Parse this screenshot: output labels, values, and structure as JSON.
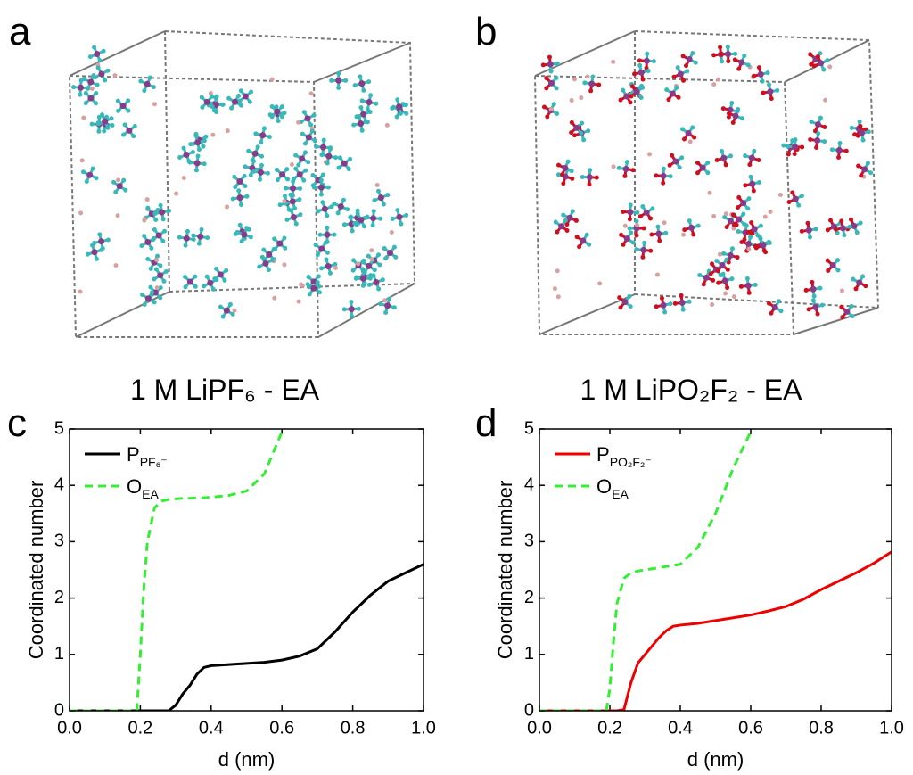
{
  "panels": [
    {
      "label": "a",
      "caption": "1 M LiPF₆ - EA"
    },
    {
      "label": "b",
      "caption": "1 M LiPO₂F₂ - EA"
    }
  ],
  "chart_data": [
    {
      "type": "line",
      "label": "c",
      "xlabel": "d (nm)",
      "ylabel": "Coordinated number",
      "x": [
        0,
        0.05,
        0.1,
        0.15,
        0.19,
        0.2,
        0.21,
        0.22,
        0.24,
        0.26,
        0.28,
        0.3,
        0.32,
        0.34,
        0.36,
        0.38,
        0.4,
        0.45,
        0.5,
        0.55,
        0.6,
        0.65,
        0.7,
        0.75,
        0.8,
        0.85,
        0.9,
        0.95,
        1.0
      ],
      "xlim": [
        0,
        1
      ],
      "ylim": [
        0,
        5
      ],
      "xticks": [
        {
          "value": 0,
          "label": "0.0"
        },
        {
          "value": 0.2,
          "label": "0.2"
        },
        {
          "value": 0.4,
          "label": "0.4"
        },
        {
          "value": 0.6,
          "label": "0.6"
        },
        {
          "value": 0.8,
          "label": "0.8"
        },
        {
          "value": 1,
          "label": "1.0"
        }
      ],
      "yticks": [
        0,
        1,
        2,
        3,
        4,
        5
      ],
      "series": [
        {
          "name": "P",
          "subscript": "PF₆⁻",
          "color": "#000000",
          "dash": false,
          "values": [
            0,
            0,
            0,
            0,
            0,
            0,
            0,
            0,
            0,
            0,
            0,
            0.1,
            0.3,
            0.45,
            0.65,
            0.77,
            0.8,
            0.82,
            0.84,
            0.86,
            0.9,
            0.97,
            1.1,
            1.4,
            1.75,
            2.05,
            2.3,
            2.45,
            2.6
          ]
        },
        {
          "name": "O",
          "subscript": "EA",
          "color": "#33ee33",
          "dash": true,
          "values": [
            0,
            0,
            0,
            0,
            0,
            1.0,
            2.2,
            3.0,
            3.6,
            3.72,
            3.75,
            3.76,
            3.77,
            3.77,
            3.78,
            3.78,
            3.79,
            3.82,
            3.9,
            4.2,
            4.95,
            null,
            null,
            null,
            null,
            null,
            null,
            null,
            null
          ]
        }
      ]
    },
    {
      "type": "line",
      "label": "d",
      "xlabel": "d (nm)",
      "ylabel": "Coordinated number",
      "x": [
        0,
        0.05,
        0.1,
        0.15,
        0.19,
        0.2,
        0.21,
        0.22,
        0.24,
        0.26,
        0.28,
        0.3,
        0.32,
        0.34,
        0.36,
        0.38,
        0.4,
        0.45,
        0.5,
        0.55,
        0.6,
        0.65,
        0.7,
        0.75,
        0.8,
        0.85,
        0.9,
        0.95,
        1.0
      ],
      "xlim": [
        0,
        1
      ],
      "ylim": [
        0,
        5
      ],
      "xticks": [
        {
          "value": 0,
          "label": "0.0"
        },
        {
          "value": 0.2,
          "label": "0.2"
        },
        {
          "value": 0.4,
          "label": "0.4"
        },
        {
          "value": 0.6,
          "label": "0.6"
        },
        {
          "value": 0.8,
          "label": "0.8"
        },
        {
          "value": 1,
          "label": "1.0"
        }
      ],
      "yticks": [
        0,
        1,
        2,
        3,
        4,
        5
      ],
      "series": [
        {
          "name": "P",
          "subscript": "PO₂F₂⁻",
          "color": "#ee0000",
          "dash": false,
          "values": [
            0,
            0,
            0,
            0,
            0,
            0,
            0,
            0,
            0.02,
            0.5,
            0.85,
            1.0,
            1.15,
            1.3,
            1.42,
            1.5,
            1.52,
            1.55,
            1.6,
            1.65,
            1.7,
            1.77,
            1.85,
            1.98,
            2.15,
            2.3,
            2.45,
            2.62,
            2.82
          ]
        },
        {
          "name": "O",
          "subscript": "EA",
          "color": "#33ee33",
          "dash": true,
          "values": [
            0,
            0,
            0,
            0,
            0,
            0.4,
            1.2,
            1.9,
            2.35,
            2.45,
            2.48,
            2.5,
            2.52,
            2.54,
            2.56,
            2.58,
            2.6,
            2.9,
            3.5,
            4.3,
            4.95,
            null,
            null,
            null,
            null,
            null,
            null,
            null,
            null
          ]
        }
      ]
    }
  ]
}
